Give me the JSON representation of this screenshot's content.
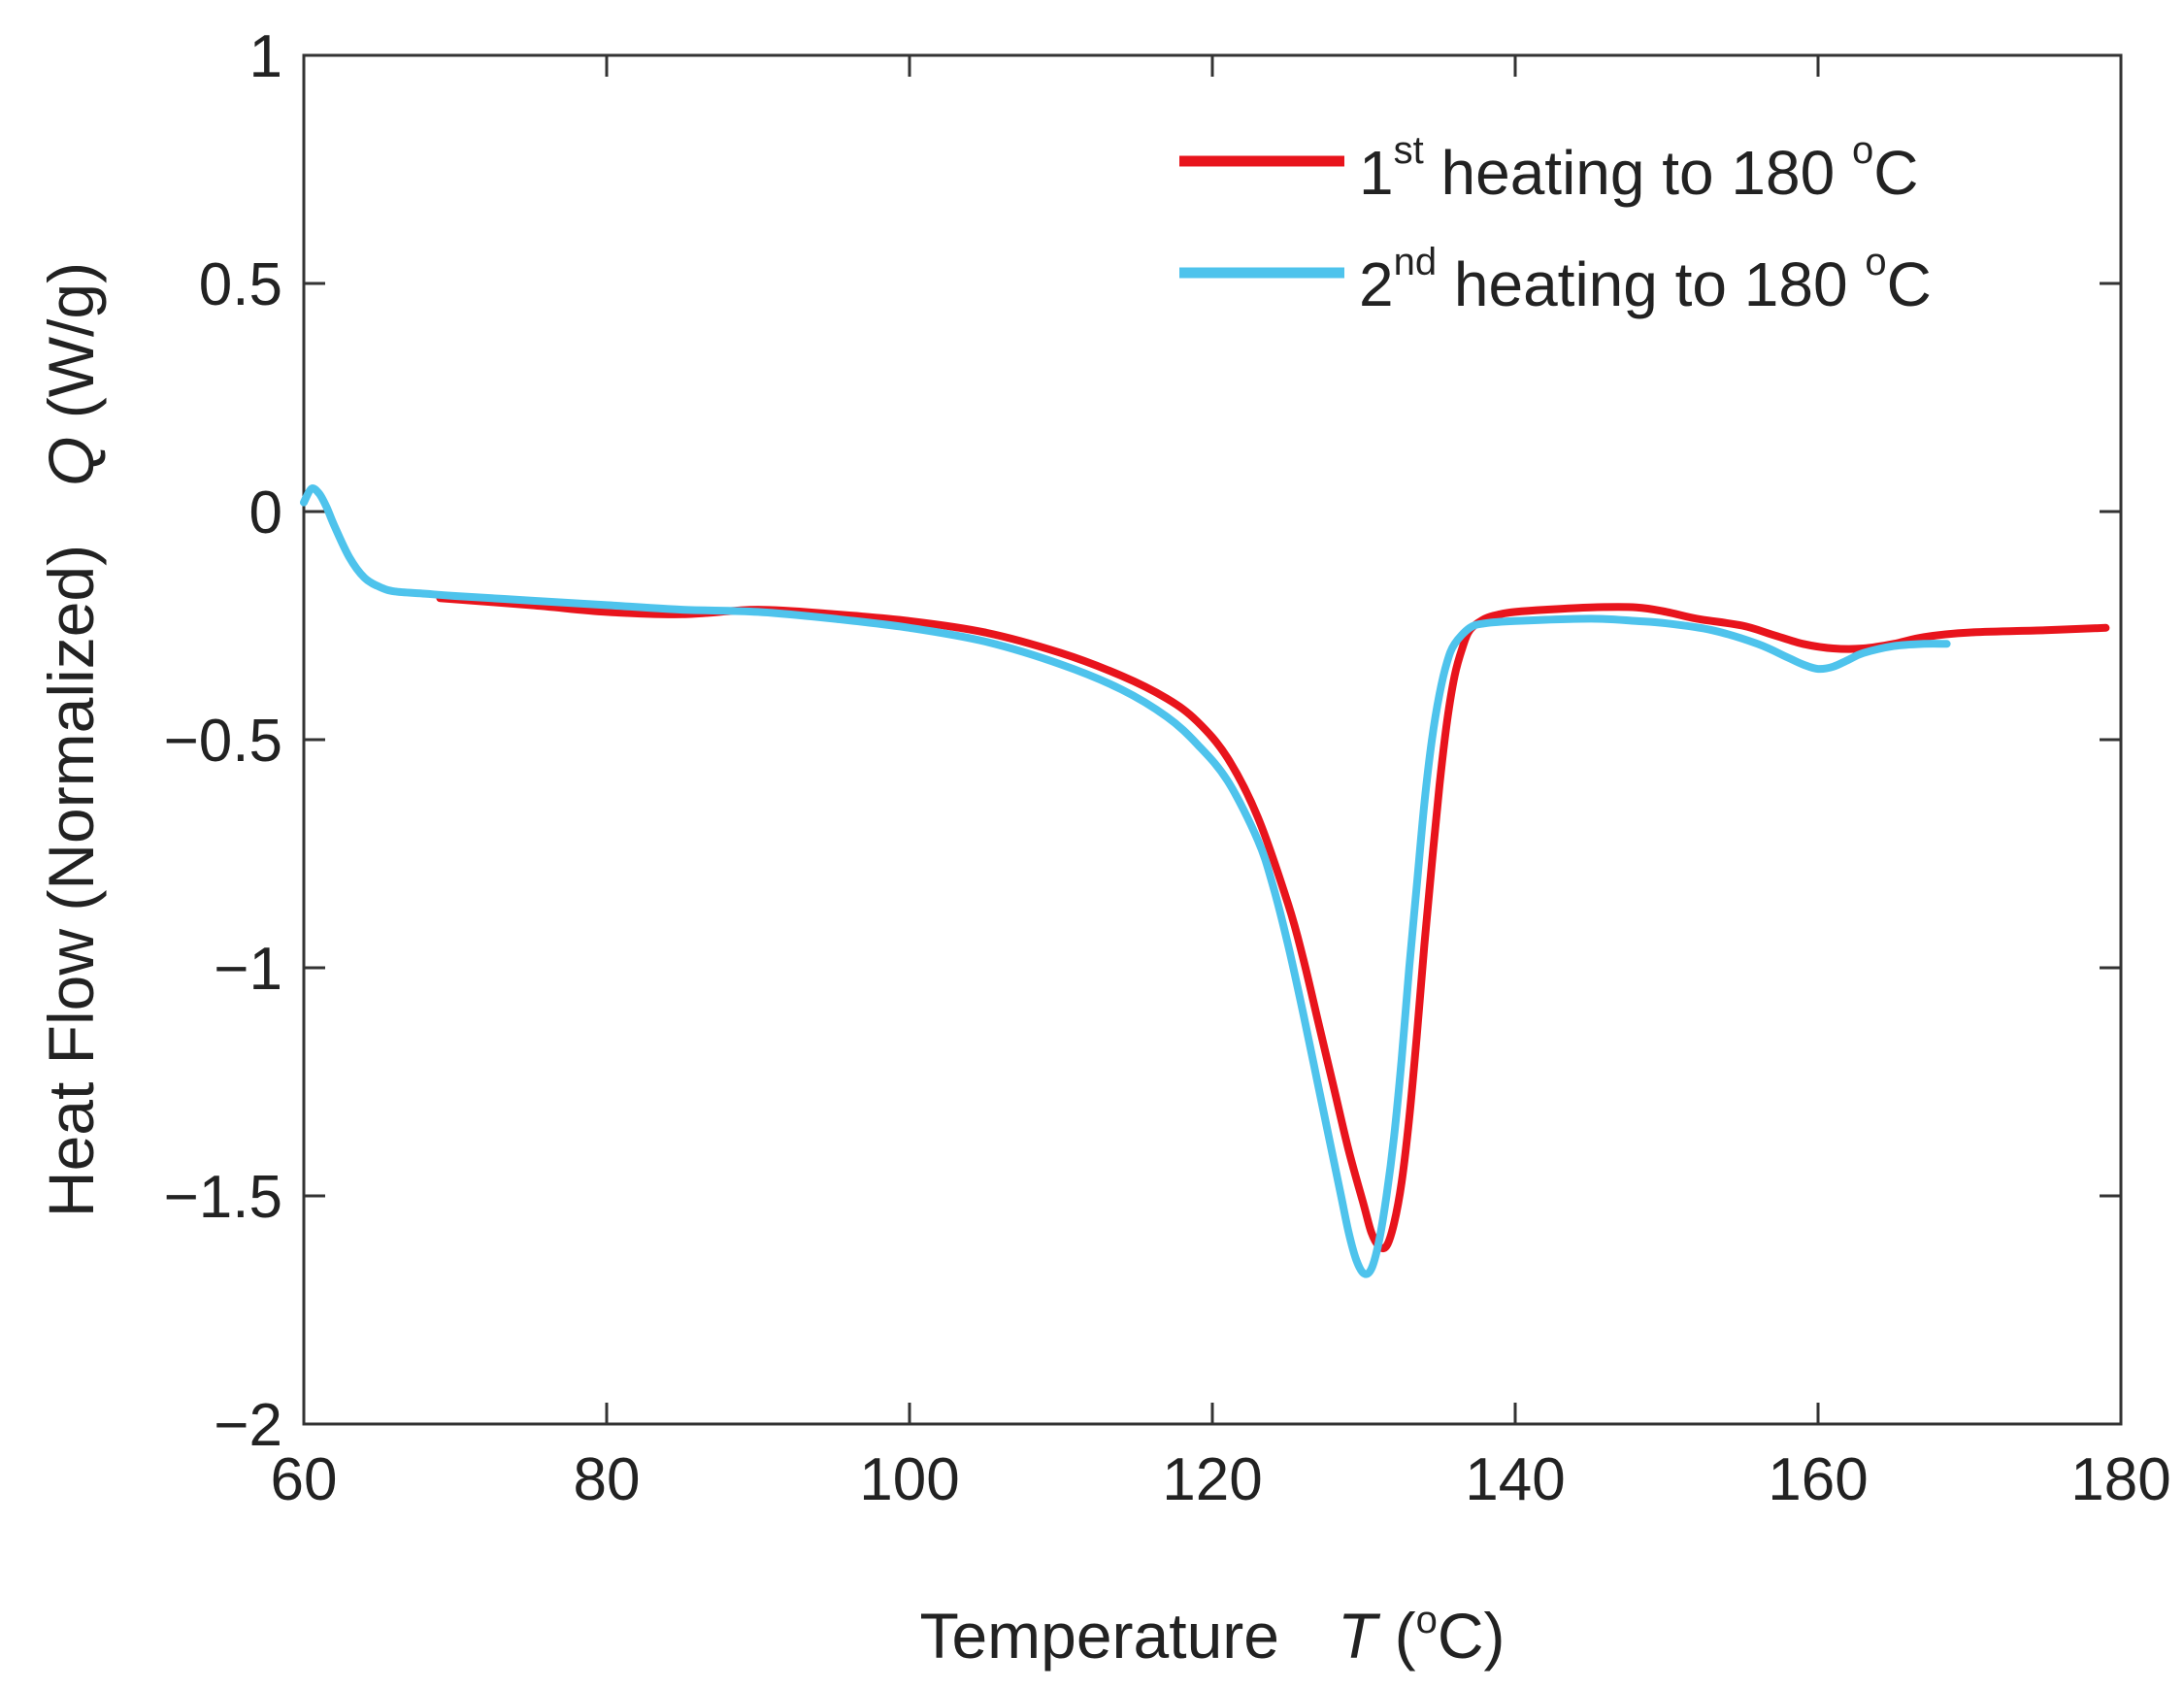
{
  "chart_data": {
    "type": "line",
    "title": "",
    "xlabel": {
      "main": "Temperature",
      "symbol": "T",
      "unit_open": " (",
      "unit_sup": "o",
      "unit_close": "C)"
    },
    "ylabel": {
      "main": "Heat Flow (Normalized)",
      "symbol": "Q",
      "unit": " (W/g)"
    },
    "xlim": [
      60,
      180
    ],
    "ylim": [
      -2,
      1
    ],
    "xticks": [
      60,
      80,
      100,
      120,
      140,
      160,
      180
    ],
    "yticks": [
      1,
      0.5,
      0,
      -0.5,
      -1,
      -1.5,
      -2
    ],
    "ytick_labels": [
      "1",
      "0.5",
      "0",
      "−0.5",
      "−1",
      "−1.5",
      "−2"
    ],
    "grid": false,
    "legend_position": "top-right",
    "series": [
      {
        "name": "1st heating to 180 oC",
        "legend": {
          "num": "1",
          "sup": "st",
          "text": " heating to 180 ",
          "deg": "o",
          "unit": "C"
        },
        "color": "#e8141c",
        "x": [
          69,
          75,
          80,
          85,
          90,
          95,
          100,
          105,
          110,
          114,
          117,
          119,
          121,
          123,
          125,
          126,
          127,
          128,
          129,
          130,
          130.5,
          131,
          131.5,
          132,
          132.5,
          133,
          133.5,
          134,
          134.5,
          135,
          135.5,
          136,
          136.5,
          137,
          138,
          139,
          140,
          142,
          145,
          148,
          150,
          152,
          155,
          157,
          159,
          161,
          163,
          165,
          167,
          170,
          175,
          179
        ],
        "y": [
          -0.19,
          -0.205,
          -0.22,
          -0.225,
          -0.215,
          -0.225,
          -0.24,
          -0.265,
          -0.31,
          -0.36,
          -0.41,
          -0.46,
          -0.54,
          -0.67,
          -0.86,
          -0.98,
          -1.12,
          -1.26,
          -1.4,
          -1.52,
          -1.58,
          -1.61,
          -1.61,
          -1.56,
          -1.47,
          -1.33,
          -1.15,
          -0.95,
          -0.77,
          -0.6,
          -0.46,
          -0.36,
          -0.3,
          -0.26,
          -0.235,
          -0.225,
          -0.22,
          -0.215,
          -0.21,
          -0.21,
          -0.22,
          -0.235,
          -0.25,
          -0.27,
          -0.29,
          -0.3,
          -0.3,
          -0.29,
          -0.275,
          -0.265,
          -0.26,
          -0.255
        ]
      },
      {
        "name": "2nd heating to 180 oC",
        "legend": {
          "num": "2",
          "sup": "nd",
          "text": " heating to 180 ",
          "deg": "o",
          "unit": "C"
        },
        "color": "#4ec3ec",
        "x": [
          60,
          60.5,
          61,
          61.5,
          62,
          63,
          64,
          65,
          66,
          68,
          70,
          75,
          80,
          85,
          90,
          95,
          100,
          105,
          110,
          114,
          117,
          119,
          121,
          123,
          124,
          125,
          126,
          127,
          128,
          128.5,
          129,
          129.5,
          130,
          130.5,
          131,
          131.5,
          132,
          132.5,
          133,
          133.5,
          134,
          134.5,
          135,
          135.5,
          136,
          137,
          138,
          140,
          145,
          148,
          150,
          153,
          156,
          158,
          159,
          160,
          161,
          162,
          163,
          165,
          167,
          168.5
        ],
        "y": [
          0.02,
          0.05,
          0.04,
          0.01,
          -0.03,
          -0.1,
          -0.145,
          -0.165,
          -0.175,
          -0.18,
          -0.185,
          -0.195,
          -0.205,
          -0.215,
          -0.22,
          -0.235,
          -0.255,
          -0.285,
          -0.335,
          -0.39,
          -0.45,
          -0.51,
          -0.59,
          -0.72,
          -0.82,
          -0.95,
          -1.1,
          -1.26,
          -1.42,
          -1.5,
          -1.58,
          -1.64,
          -1.67,
          -1.66,
          -1.6,
          -1.5,
          -1.37,
          -1.2,
          -1.0,
          -0.82,
          -0.64,
          -0.5,
          -0.4,
          -0.33,
          -0.29,
          -0.255,
          -0.245,
          -0.24,
          -0.235,
          -0.24,
          -0.245,
          -0.26,
          -0.29,
          -0.32,
          -0.335,
          -0.345,
          -0.34,
          -0.325,
          -0.31,
          -0.295,
          -0.29,
          -0.29
        ]
      }
    ]
  }
}
